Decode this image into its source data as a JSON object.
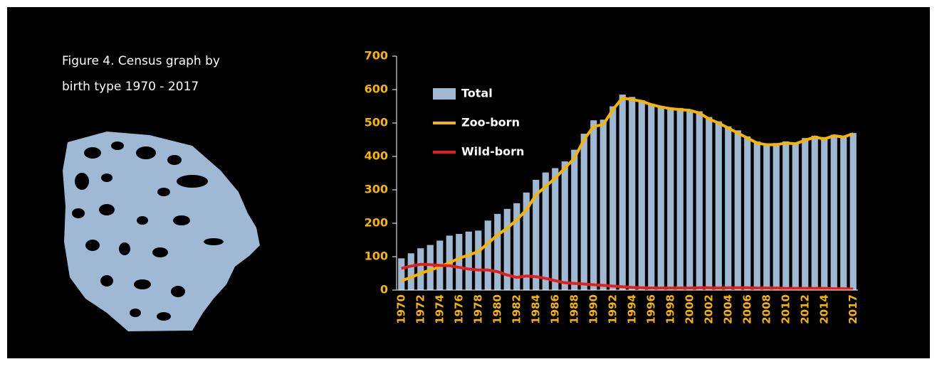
{
  "caption": [
    "Figure 4. Census graph by",
    "birth type 1970 - 2017"
  ],
  "chart_data": {
    "type": "bar",
    "categories": [
      "1970",
      null,
      "1972",
      null,
      "1974",
      null,
      "1976",
      null,
      "1978",
      null,
      "1980",
      null,
      "1982",
      null,
      "1984",
      null,
      "1986",
      null,
      "1988",
      null,
      "1990",
      null,
      "1992",
      null,
      "1994",
      null,
      "1996",
      null,
      "1998",
      null,
      "2000",
      null,
      "2002",
      null,
      "2004",
      null,
      "2006",
      null,
      "2008",
      null,
      "2010",
      null,
      "2012",
      null,
      "2014",
      null,
      null,
      "2017"
    ],
    "series": [
      {
        "name": "Total",
        "type": "bar",
        "color": "#9fb8d4",
        "values": [
          95,
          110,
          125,
          135,
          148,
          163,
          168,
          175,
          178,
          208,
          228,
          243,
          260,
          292,
          330,
          352,
          365,
          385,
          420,
          468,
          508,
          510,
          550,
          585,
          578,
          568,
          558,
          550,
          545,
          545,
          540,
          535,
          518,
          505,
          490,
          478,
          460,
          445,
          438,
          440,
          445,
          440,
          455,
          462,
          458,
          465,
          462,
          470
        ]
      },
      {
        "name": "Zoo-born",
        "type": "line",
        "color": "#f7b500",
        "values": [
          28,
          38,
          50,
          60,
          70,
          82,
          95,
          105,
          115,
          140,
          165,
          185,
          210,
          240,
          285,
          310,
          335,
          365,
          395,
          450,
          490,
          495,
          540,
          575,
          570,
          565,
          555,
          548,
          543,
          540,
          538,
          530,
          512,
          500,
          485,
          470,
          455,
          440,
          435,
          435,
          440,
          438,
          448,
          458,
          452,
          462,
          458,
          468
        ]
      },
      {
        "name": "Wild-born",
        "type": "line",
        "color": "#e3201b",
        "values": [
          65,
          72,
          77,
          76,
          74,
          73,
          68,
          63,
          60,
          60,
          55,
          45,
          38,
          42,
          40,
          35,
          28,
          22,
          20,
          18,
          16,
          14,
          12,
          10,
          8,
          7,
          6,
          6,
          6,
          6,
          6,
          7,
          7,
          6,
          7,
          7,
          7,
          6,
          6,
          6,
          5,
          5,
          5,
          5,
          5,
          4,
          4,
          3
        ]
      }
    ],
    "ylim": [
      0,
      700
    ],
    "yticks": [
      0,
      100,
      200,
      300,
      400,
      500,
      600,
      700
    ],
    "grid": false
  }
}
